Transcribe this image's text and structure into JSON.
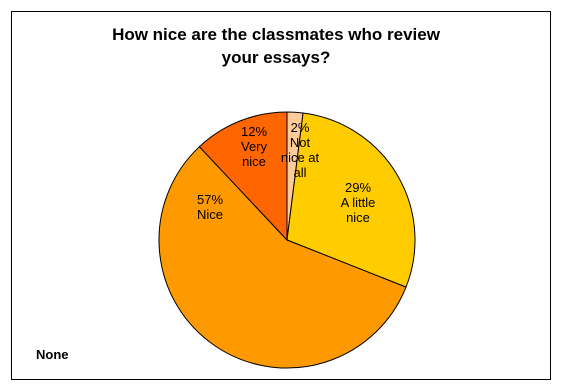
{
  "chart_data": {
    "type": "pie",
    "title_lines": [
      "How nice are the classmates who review",
      "your essays?"
    ],
    "slices": [
      {
        "label_lines": [
          "2%",
          "Not",
          "nice at",
          "all"
        ],
        "value": 2,
        "color": "#FFCC99"
      },
      {
        "label_lines": [
          "29%",
          "A little",
          "nice"
        ],
        "value": 29,
        "color": "#FFCC00"
      },
      {
        "label_lines": [
          "57%",
          "Nice"
        ],
        "value": 57,
        "color": "#FF9900"
      },
      {
        "label_lines": [
          "12%",
          "Very",
          "nice"
        ],
        "value": 12,
        "color": "#FF6600"
      }
    ],
    "legend": "none"
  },
  "footnote": "None"
}
